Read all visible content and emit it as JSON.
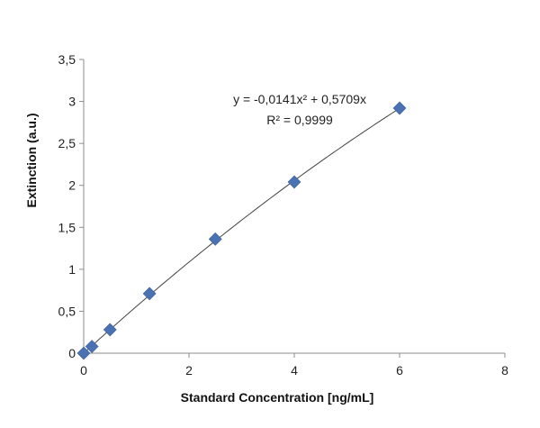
{
  "chart_data": {
    "type": "scatter",
    "title": "",
    "xlabel": "Standard Concentration [ng/mL]",
    "ylabel": "Extinction (a.u.)",
    "xlim": [
      0,
      8
    ],
    "ylim": [
      0,
      3.5
    ],
    "x_ticks": [
      "0",
      "2",
      "4",
      "6",
      "8"
    ],
    "y_ticks": [
      "0",
      "0,5",
      "1",
      "1,5",
      "2",
      "2,5",
      "3",
      "3,5"
    ],
    "grid": false,
    "legend": "none",
    "marker": "diamond",
    "marker_color": "#4a72b2",
    "trendline_color": "#444444",
    "points": [
      {
        "x": 0,
        "y": 0
      },
      {
        "x": 0.156,
        "y": 0.08
      },
      {
        "x": 0.5,
        "y": 0.28
      },
      {
        "x": 1.25,
        "y": 0.71
      },
      {
        "x": 2.5,
        "y": 1.36
      },
      {
        "x": 4,
        "y": 2.04
      },
      {
        "x": 6,
        "y": 2.92
      }
    ],
    "trendline": {
      "type": "polynomial",
      "a": -0.0141,
      "b": 0.5709,
      "c": 0,
      "x_range": [
        0,
        6
      ]
    },
    "annotation": {
      "equation": "y = -0,0141x² + 0,5709x",
      "r_squared": "R² = 0,9999"
    }
  }
}
